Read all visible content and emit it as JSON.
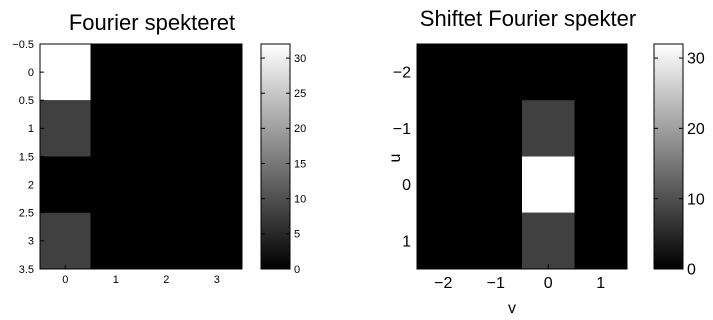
{
  "chart_data": [
    {
      "type": "heatmap",
      "title": "Fourier spekteret",
      "xlabel": "",
      "ylabel": "",
      "x_ticks": [
        "0",
        "1",
        "2",
        "3"
      ],
      "y_ticks": [
        "−0.5",
        "0",
        "0.5",
        "1",
        "1.5",
        "2",
        "2.5",
        "3",
        "3.5"
      ],
      "xlim": [
        -0.5,
        3.5
      ],
      "ylim": [
        -0.5,
        3.5
      ],
      "y_reversed": true,
      "x": [
        0,
        1,
        2,
        3
      ],
      "y": [
        0,
        1,
        2,
        3
      ],
      "values": [
        [
          32,
          0,
          0,
          0
        ],
        [
          8,
          0,
          0,
          0
        ],
        [
          0,
          0,
          0,
          0
        ],
        [
          8,
          0,
          0,
          0
        ]
      ],
      "colormap": "gray",
      "clim": [
        0,
        32
      ],
      "colorbar_ticks": [
        "0",
        "5",
        "10",
        "15",
        "20",
        "25",
        "30"
      ]
    },
    {
      "type": "heatmap",
      "title": "Shiftet Fourier spekter",
      "xlabel": "v",
      "ylabel": "u",
      "x_ticks": [
        "−2",
        "−1",
        "0",
        "1"
      ],
      "y_ticks": [
        "−2",
        "−1",
        "0",
        "1"
      ],
      "xlim": [
        -2.5,
        1.5
      ],
      "ylim": [
        -2.5,
        1.5
      ],
      "y_reversed": true,
      "x": [
        -2,
        -1,
        0,
        1
      ],
      "y": [
        -2,
        -1,
        0,
        1
      ],
      "values": [
        [
          0,
          0,
          0,
          0
        ],
        [
          0,
          0,
          8,
          0
        ],
        [
          0,
          0,
          32,
          0
        ],
        [
          0,
          0,
          8,
          0
        ]
      ],
      "colormap": "gray",
      "clim": [
        0,
        32
      ],
      "colorbar_ticks": [
        "0",
        "10",
        "20",
        "30"
      ]
    }
  ]
}
